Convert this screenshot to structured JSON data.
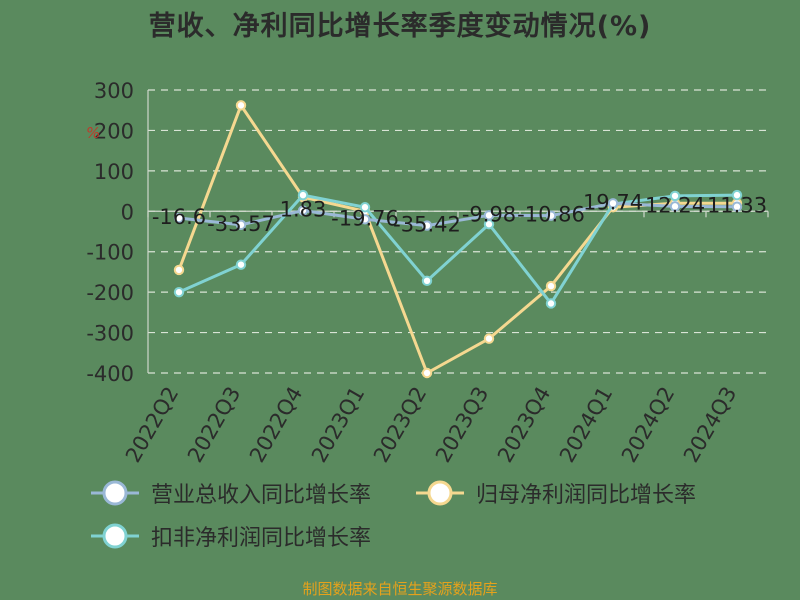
{
  "title": "营收、净利同比增长率季度变动情况(%)",
  "source": "制图数据来自恒生聚源数据库",
  "unit_label": "%",
  "chart_data": {
    "type": "line",
    "title": "营收、净利同比增长率季度变动情况(%)",
    "categories": [
      "2022Q2",
      "2022Q3",
      "2022Q4",
      "2023Q1",
      "2023Q2",
      "2023Q3",
      "2023Q4",
      "2024Q1",
      "2024Q2",
      "2024Q3"
    ],
    "ylim": [
      -400,
      300
    ],
    "yticks": [
      300,
      200,
      100,
      0,
      -100,
      -200,
      -300,
      -400
    ],
    "grid": true,
    "legend_position": "bottom",
    "series": [
      {
        "name": "营业总收入同比增长率",
        "color": "#9ab8d6",
        "values": [
          -16.6,
          -33.57,
          1.83,
          -19.76,
          -35.42,
          -9.98,
          -10.86,
          19.74,
          12.24,
          11.33
        ],
        "labels": [
          "-16.6",
          "-33.57",
          "1.83",
          "-19.76",
          "-35.42",
          "-9.98",
          "-10.86",
          "19.74",
          "12.24",
          "11.33"
        ]
      },
      {
        "name": "归母净利润同比增长率",
        "color": "#f5d890",
        "values": [
          -145,
          262,
          35,
          0,
          -400,
          -315,
          -185,
          10,
          20,
          20
        ]
      },
      {
        "name": "扣非净利润同比增长率",
        "color": "#80d2d2",
        "values": [
          -200,
          -132,
          40,
          10,
          -172,
          -32,
          -228,
          18,
          38,
          40
        ]
      }
    ]
  }
}
